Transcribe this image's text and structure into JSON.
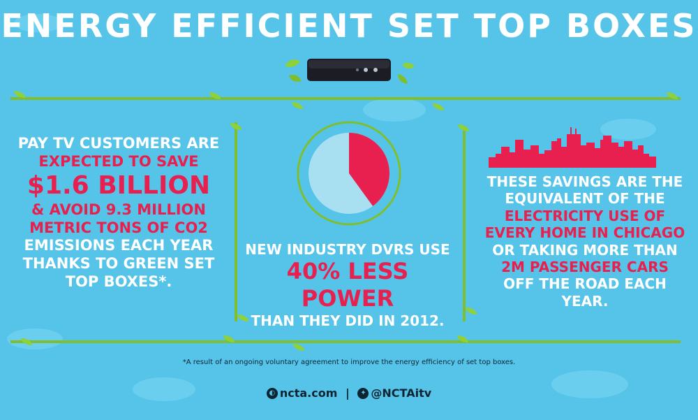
{
  "title": "ENERGY EFFICIENT SET TOP BOXES",
  "left_panel": {
    "line1": "PAY TV CUSTOMERS ARE",
    "line2": "EXPECTED TO SAVE",
    "amount": "$1.6 BILLION",
    "line4": "& AVOID 9.3 MILLION",
    "line5": "METRIC TONS OF CO2",
    "line6": "EMISSIONS EACH YEAR",
    "line7": "THANKS TO GREEN SET",
    "line8": "TOP BOXES*."
  },
  "center_panel": {
    "line1": "NEW INDUSTRY DVRS USE",
    "highlight": "40% LESS POWER",
    "line3": "THAN THEY DID IN 2012.",
    "pie_fraction": 0.4,
    "colors": {
      "slice": "#e8204f",
      "rest": "#a8e0f2",
      "ring": "#7fbf2f"
    }
  },
  "right_panel": {
    "line1": "THESE SAVINGS ARE THE",
    "line2": "EQUIVALENT OF THE",
    "line3": "ELECTRICITY USE OF",
    "line4": "EVERY HOME IN CHICAGO",
    "line5": "OR TAKING MORE THAN",
    "line6": "2M PASSENGER CARS",
    "line7": "OFF THE ROAD EACH YEAR."
  },
  "footnote": "*A result of an ongoing voluntary agreement to improve the energy efficiency of set top boxes.",
  "footer": {
    "site": "ncta.com",
    "separator": "|",
    "handle": "@NCTAitv"
  },
  "icons": {
    "set_top_box": "set-top-box-icon",
    "pie": "pie-chart-icon",
    "skyline": "chicago-skyline-icon",
    "ncta_logo": "ncta-logo-icon",
    "twitter": "twitter-bird-icon"
  },
  "colors": {
    "background": "#55c4e8",
    "accent": "#e8204f",
    "vine": "#7fbf2f",
    "text_dark": "#0d2433"
  }
}
